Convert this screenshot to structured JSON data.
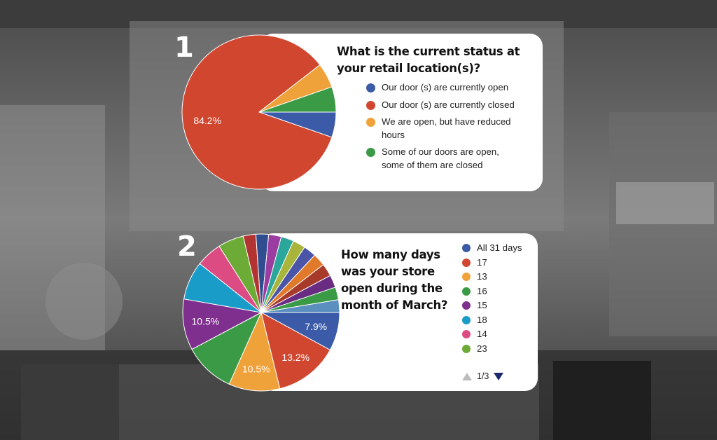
{
  "colors": {
    "blue": "#3b5ba9",
    "red": "#d1462f",
    "orange": "#f0a23a",
    "green": "#3a9a45",
    "purple": "#7f2f8e",
    "cyan": "#1a9cc9",
    "pink": "#dc4b82",
    "lime": "#6cab36",
    "darkred": "#b33232",
    "navy": "#2f4d8f",
    "magenta": "#9b3da0",
    "teal": "#2aa69a",
    "olive": "#a8b53a",
    "indigo": "#4a55a8",
    "darkorange": "#e07a2a",
    "brown": "#a83a2a",
    "violet": "#6a2c82",
    "steelblue": "#5a8fc0"
  },
  "chart_data": [
    {
      "number": "1",
      "type": "pie",
      "title": "What is the current status at your retail location(s)?",
      "labels": [
        "Our door (s) are currently open",
        "Our door (s) are currently closed",
        "We are open, but have reduced hours",
        "Some of our doors are open, some of them are closed"
      ],
      "values": [
        5.3,
        84.2,
        5.2,
        5.3
      ],
      "colors": [
        "#3b5ba9",
        "#d1462f",
        "#f0a23a",
        "#3a9a45"
      ],
      "data_labels": [
        "",
        "84.2%",
        "",
        ""
      ]
    },
    {
      "number": "2",
      "type": "pie",
      "title": "How many days was your store open during the month of March?",
      "legend_labels": [
        "All 31 days",
        "17",
        "13",
        "16",
        "15",
        "18",
        "14",
        "23"
      ],
      "legend_colors": [
        "#3b5ba9",
        "#d1462f",
        "#f0a23a",
        "#3a9a45",
        "#7f2f8e",
        "#1a9cc9",
        "#dc4b82",
        "#6cab36"
      ],
      "values": [
        7.9,
        13.2,
        10.5,
        10.5,
        10.5,
        7.9,
        5.3,
        5.3,
        2.6,
        2.6,
        2.6,
        2.6,
        2.6,
        2.6,
        2.6,
        2.6,
        2.6,
        2.6,
        2.6
      ],
      "colors": [
        "#3b5ba9",
        "#d1462f",
        "#f0a23a",
        "#3a9a45",
        "#7f2f8e",
        "#1a9cc9",
        "#dc4b82",
        "#6cab36",
        "#b33232",
        "#2f4d8f",
        "#9b3da0",
        "#2aa69a",
        "#a8b53a",
        "#4a55a8",
        "#e07a2a",
        "#a83a2a",
        "#6a2c82",
        "#3a9a45",
        "#5a8fc0"
      ],
      "data_labels": [
        "7.9%",
        "13.2%",
        "10.5%",
        "",
        "10.5%",
        "",
        "",
        "",
        "",
        "",
        "",
        "",
        "",
        "",
        "",
        "",
        "",
        "",
        ""
      ],
      "pager": "1/3"
    }
  ]
}
